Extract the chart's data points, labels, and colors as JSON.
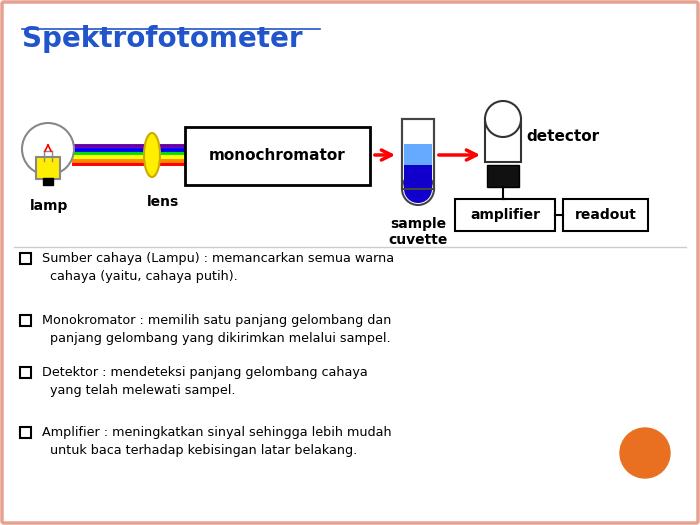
{
  "title": "Spektrofotometer",
  "title_color": "#2255CC",
  "title_fontsize": 20,
  "bg_color": "#FFFFFF",
  "border_color": "#E8A090",
  "bullet_points": [
    " Sumber cahaya (Lampu) : memancarkan semua warna\n   cahaya (yaitu, cahaya putih).",
    " Monokromator : memilih satu panjang gelombang dan\n   panjang gelombang yang dikirimkan melalui sampel.",
    " Detektor : mendeteksi panjang gelombang cahaya\n   yang telah melewati sampel.",
    " Amplifier : meningkatkan sinyal sehingga lebih mudah\n   untuk baca terhadap kebisingan latar belakang."
  ],
  "orange_circle_color": "#E87020",
  "text_color": "#000000",
  "diagram_labels": {
    "lamp": "lamp",
    "lens": "lens",
    "monochromator": "monochromator",
    "sample_cuvette": "sample\ncuvette",
    "detector": "detector",
    "amplifier": "amplifier",
    "readout": "readout"
  },
  "beam_colors": [
    "#FF0000",
    "#FF8800",
    "#FFFF00",
    "#00DD00",
    "#0000FF",
    "#6600AA"
  ],
  "lamp_body_color": "#FFEE00",
  "lamp_body_edge": "#888888",
  "lamp_bulb_edge": "#888888",
  "lens_color": "#FFEE00",
  "lens_edge": "#CCAA00",
  "liquid_dark": "#1100CC",
  "liquid_light": "#66AAFF",
  "detector_edge": "#333333",
  "black_block": "#111111"
}
